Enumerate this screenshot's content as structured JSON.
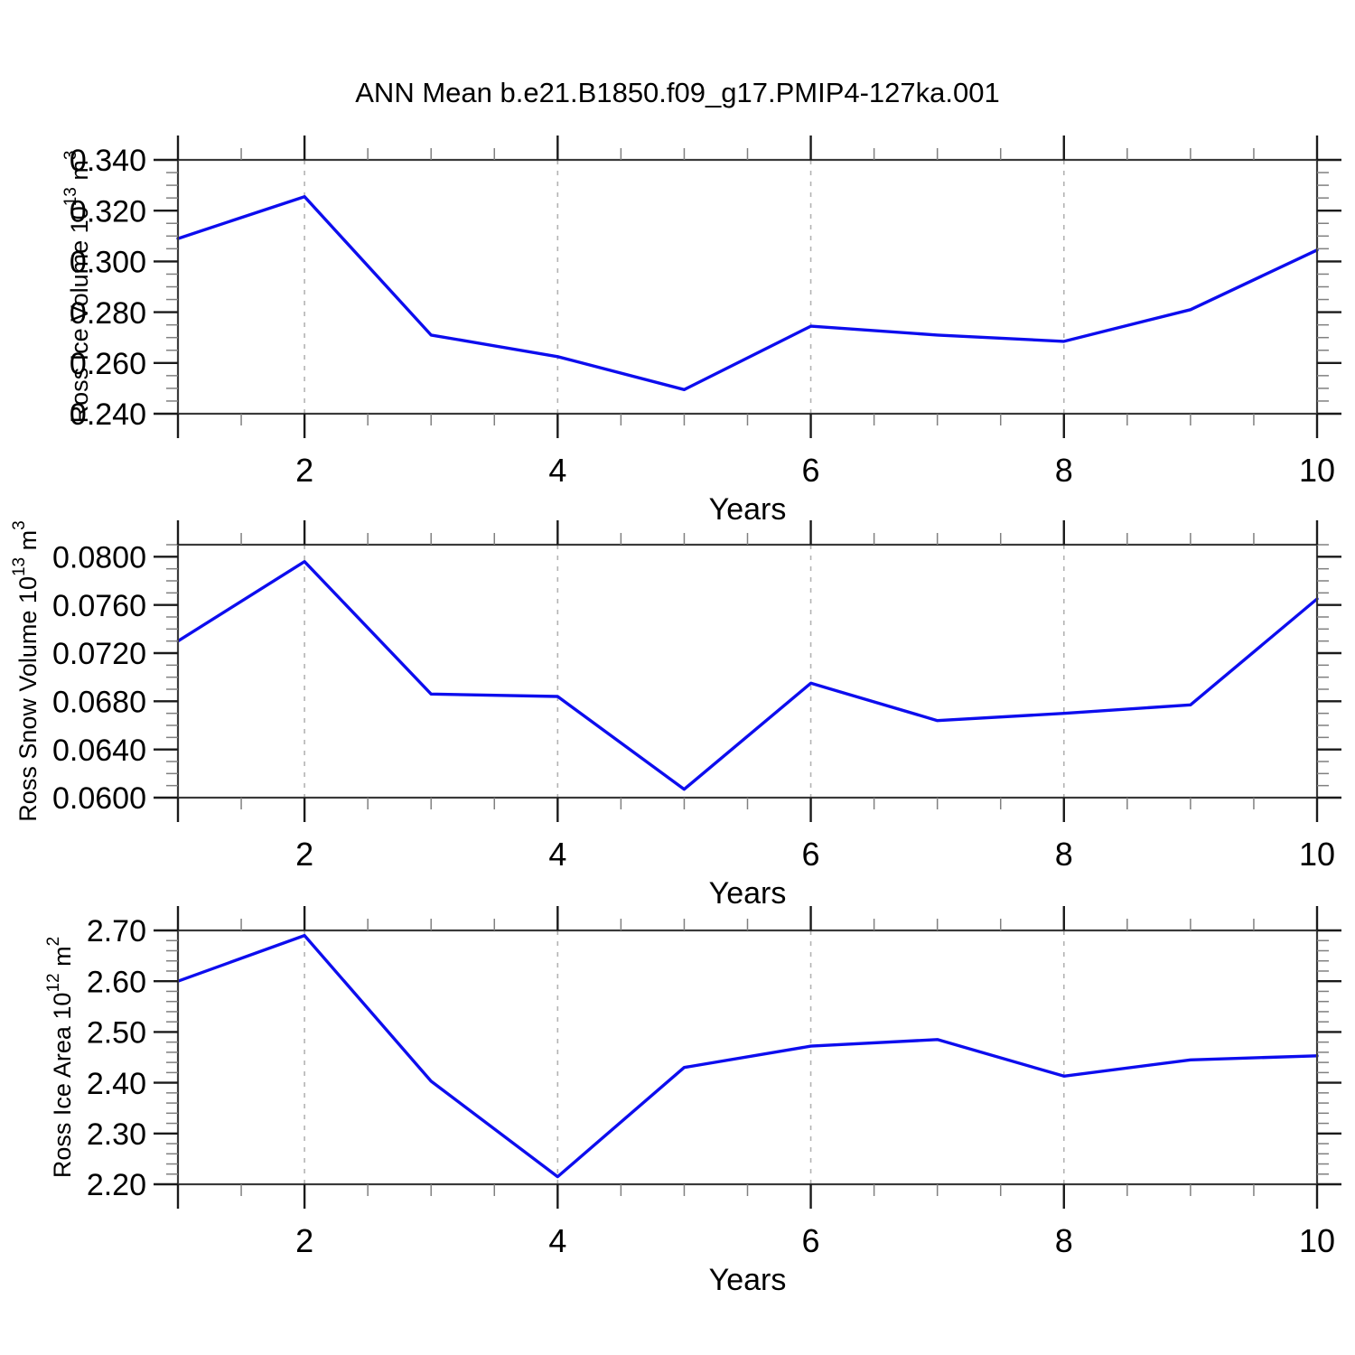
{
  "title": "ANN Mean b.e21.B1850.f09_g17.PMIP4-127ka.001",
  "style": {
    "line_color": "#0d0dee",
    "grid_color": "#b3b3b3",
    "border_color": "#3a3a3a",
    "major_tick_color": "#1a1a1a",
    "minor_tick_color": "#808080",
    "background": "#ffffff"
  },
  "chart_data": [
    {
      "type": "line",
      "title": "",
      "ylabel_plain": "Ross Ice Volume 10^13 m^3",
      "ylabel_segments": [
        {
          "t": "Ross Ice Volume 10",
          "sup": false
        },
        {
          "t": "13",
          "sup": true
        },
        {
          "t": " m",
          "sup": false
        },
        {
          "t": "3",
          "sup": true
        }
      ],
      "xlabel": "Years",
      "x": [
        1,
        2,
        3,
        4,
        5,
        6,
        7,
        8,
        9,
        10
      ],
      "values": [
        0.309,
        0.3255,
        0.271,
        0.2625,
        0.2495,
        0.2745,
        0.271,
        0.2685,
        0.281,
        0.3045
      ],
      "xlim": [
        1,
        10
      ],
      "ylim": [
        0.24,
        0.34
      ],
      "yticks": [
        0.24,
        0.26,
        0.28,
        0.3,
        0.32,
        0.34
      ],
      "ytick_labels": [
        "0.240",
        "0.260",
        "0.280",
        "0.300",
        "0.320",
        "0.340"
      ],
      "yminor_step": 0.005,
      "xticks": [
        2,
        4,
        6,
        8,
        10
      ],
      "xtick_labels": [
        "2",
        "4",
        "6",
        "8",
        "10"
      ],
      "xminor_step": 0.5,
      "grid_x": [
        2,
        4,
        6,
        8
      ],
      "grid_style": "dashed",
      "legend": "none"
    },
    {
      "type": "line",
      "title": "",
      "ylabel_plain": "Ross Snow Volume 10^13 m^3",
      "ylabel_segments": [
        {
          "t": "Ross Snow Volume 10",
          "sup": false
        },
        {
          "t": "13",
          "sup": true
        },
        {
          "t": " m",
          "sup": false
        },
        {
          "t": "3",
          "sup": true
        }
      ],
      "xlabel": "Years",
      "x": [
        1,
        2,
        3,
        4,
        5,
        6,
        7,
        8,
        9,
        10
      ],
      "values": [
        0.073,
        0.0796,
        0.0686,
        0.0684,
        0.0607,
        0.0695,
        0.0664,
        0.067,
        0.0677,
        0.0765
      ],
      "xlim": [
        1,
        10
      ],
      "ylim": [
        0.06,
        0.081
      ],
      "yticks": [
        0.06,
        0.064,
        0.068,
        0.072,
        0.076,
        0.08
      ],
      "ytick_labels": [
        "0.0600",
        "0.0640",
        "0.0680",
        "0.0720",
        "0.0760",
        "0.0800"
      ],
      "yminor_step": 0.001,
      "xticks": [
        2,
        4,
        6,
        8,
        10
      ],
      "xtick_labels": [
        "2",
        "4",
        "6",
        "8",
        "10"
      ],
      "xminor_step": 0.5,
      "grid_x": [
        2,
        4,
        6,
        8
      ],
      "grid_style": "dashed",
      "legend": "none"
    },
    {
      "type": "line",
      "title": "",
      "ylabel_plain": "Ross Ice Area 10^12 m^2",
      "ylabel_segments": [
        {
          "t": "Ross Ice Area 10",
          "sup": false
        },
        {
          "t": "12",
          "sup": true
        },
        {
          "t": " m",
          "sup": false
        },
        {
          "t": "2",
          "sup": true
        }
      ],
      "xlabel": "Years",
      "x": [
        1,
        2,
        3,
        4,
        5,
        6,
        7,
        8,
        9,
        10
      ],
      "values": [
        2.6,
        2.69,
        2.403,
        2.215,
        2.43,
        2.472,
        2.485,
        2.413,
        2.445,
        2.453
      ],
      "xlim": [
        1,
        10
      ],
      "ylim": [
        2.2,
        2.7
      ],
      "yticks": [
        2.2,
        2.3,
        2.4,
        2.5,
        2.6,
        2.7
      ],
      "ytick_labels": [
        "2.20",
        "2.30",
        "2.40",
        "2.50",
        "2.60",
        "2.70"
      ],
      "yminor_step": 0.02,
      "xticks": [
        2,
        4,
        6,
        8,
        10
      ],
      "xtick_labels": [
        "2",
        "4",
        "6",
        "8",
        "10"
      ],
      "xminor_step": 0.5,
      "grid_x": [
        2,
        4,
        6,
        8
      ],
      "grid_style": "dashed",
      "legend": "none"
    }
  ]
}
